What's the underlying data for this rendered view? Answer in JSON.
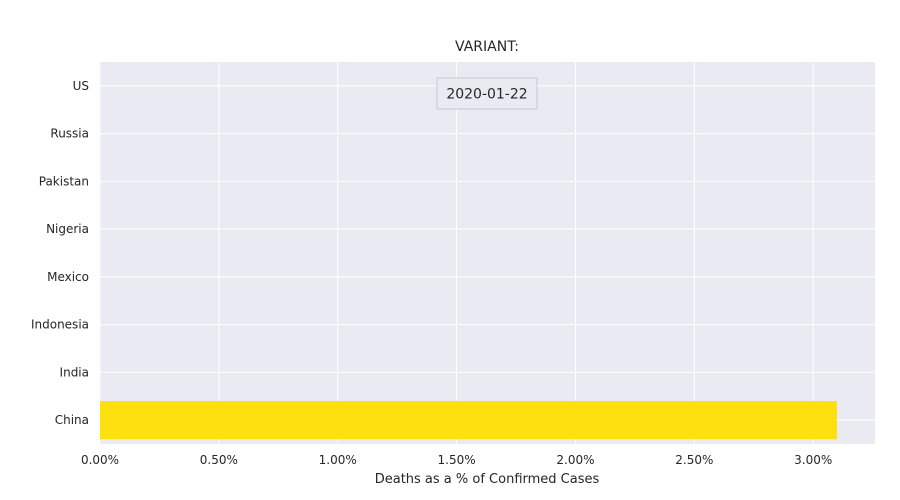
{
  "chart_data": {
    "type": "bar",
    "orientation": "horizontal",
    "title": "VARIANT:",
    "date_label": "2020-01-22",
    "xlabel": "Deaths as a % of Confirmed Cases",
    "ylabel": "",
    "categories": [
      "China",
      "India",
      "Indonesia",
      "Mexico",
      "Nigeria",
      "Pakistan",
      "Russia",
      "US"
    ],
    "values": [
      3.1,
      0,
      0,
      0,
      0,
      0,
      0,
      0
    ],
    "xlim": [
      0,
      3.26
    ],
    "xticks": [
      0,
      0.5,
      1.0,
      1.5,
      2.0,
      2.5,
      3.0
    ],
    "xtick_labels": [
      "0.00%",
      "0.50%",
      "1.00%",
      "1.50%",
      "2.00%",
      "2.50%",
      "3.00%"
    ],
    "grid": true,
    "legend": "none",
    "colors": {
      "bar": "#ffe00f",
      "plot_bg": "#eaeaf2",
      "grid": "#ffffff",
      "text": "#262626"
    }
  }
}
